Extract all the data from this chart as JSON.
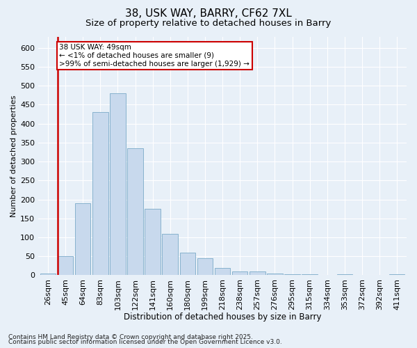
{
  "title1": "38, USK WAY, BARRY, CF62 7XL",
  "title2": "Size of property relative to detached houses in Barry",
  "xlabel": "Distribution of detached houses by size in Barry",
  "ylabel": "Number of detached properties",
  "categories": [
    "26sqm",
    "45sqm",
    "64sqm",
    "83sqm",
    "103sqm",
    "122sqm",
    "141sqm",
    "160sqm",
    "180sqm",
    "199sqm",
    "218sqm",
    "238sqm",
    "257sqm",
    "276sqm",
    "295sqm",
    "315sqm",
    "334sqm",
    "353sqm",
    "372sqm",
    "392sqm",
    "411sqm"
  ],
  "values": [
    5,
    50,
    190,
    430,
    480,
    335,
    175,
    110,
    60,
    45,
    20,
    10,
    10,
    5,
    3,
    2,
    1,
    2,
    1,
    1,
    2
  ],
  "bar_color": "#c8d9ed",
  "bar_edge_color": "#7aaac8",
  "highlight_bar_idx": 1,
  "highlight_color": "#cc0000",
  "ylim": [
    0,
    630
  ],
  "yticks": [
    0,
    50,
    100,
    150,
    200,
    250,
    300,
    350,
    400,
    450,
    500,
    550,
    600
  ],
  "annotation_text": "38 USK WAY: 49sqm\n← <1% of detached houses are smaller (9)\n>99% of semi-detached houses are larger (1,929) →",
  "annotation_box_color": "#ffffff",
  "annotation_box_edge": "#cc0000",
  "footer1": "Contains HM Land Registry data © Crown copyright and database right 2025.",
  "footer2": "Contains public sector information licensed under the Open Government Licence v3.0.",
  "bg_color": "#e8f0f8",
  "title1_fontsize": 11,
  "title2_fontsize": 9.5,
  "xlabel_fontsize": 8.5,
  "ylabel_fontsize": 8,
  "tick_fontsize": 8,
  "footer_fontsize": 6.5
}
